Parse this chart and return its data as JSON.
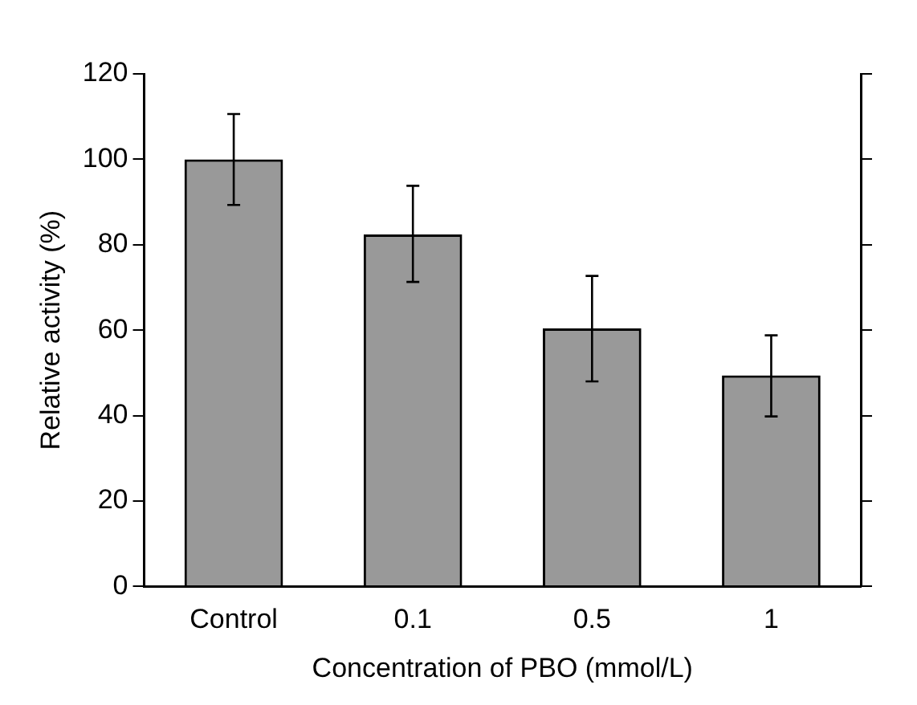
{
  "chart_data": {
    "type": "bar",
    "xlabel": "Concentration of PBO (mmol/L)",
    "ylabel": "Relative activity (%)",
    "categories": [
      "Control",
      "0.1",
      "0.5",
      "1"
    ],
    "series": [
      {
        "color": "#000000",
        "values": [
          100,
          82.4,
          60.4,
          49.4
        ],
        "errors": [
          [
            89.3,
            110.6
          ],
          [
            71.3,
            93.8
          ],
          [
            48,
            72.7
          ],
          [
            39.8,
            58.8
          ]
        ]
      }
    ],
    "ylim": [
      0,
      120
    ],
    "yticks": [
      0,
      20,
      40,
      60,
      80,
      100,
      120
    ],
    "grid": false,
    "legend": false
  }
}
